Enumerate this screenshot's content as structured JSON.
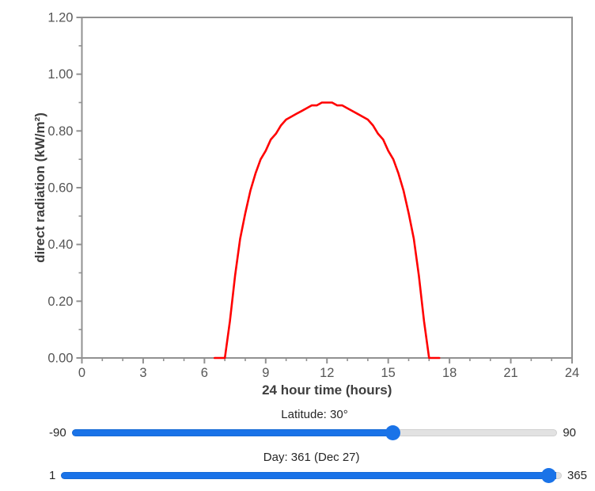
{
  "chart_data": {
    "type": "line",
    "title": "",
    "xlabel": "24 hour time (hours)",
    "ylabel": "direct radiation (kW/m²)",
    "xlim": [
      0,
      24
    ],
    "ylim": [
      0,
      1.2
    ],
    "x_major_ticks": [
      0,
      3,
      6,
      9,
      12,
      15,
      18,
      21,
      24
    ],
    "x_minor_step": 1,
    "y_major_ticks": [
      0,
      0.2,
      0.4,
      0.6,
      0.8,
      1,
      1.2
    ],
    "y_minor_step": 0.1,
    "y_tick_decimals": 2,
    "grid": false,
    "legend": false,
    "axis_color": "#919191",
    "tick_label_color": "#565656",
    "axis_title_color": "#3e3e3e",
    "series": [
      {
        "name": "direct radiation",
        "color": "#ff0000",
        "x": [
          6.5,
          6.75,
          7,
          7.25,
          7.5,
          7.75,
          8,
          8.25,
          8.5,
          8.75,
          9,
          9.25,
          9.5,
          9.75,
          10,
          10.25,
          10.5,
          10.75,
          11,
          11.25,
          11.5,
          11.75,
          12,
          12.25,
          12.5,
          12.75,
          13,
          13.25,
          13.5,
          13.75,
          14,
          14.25,
          14.5,
          14.75,
          15,
          15.25,
          15.5,
          15.75,
          16,
          16.25,
          16.5,
          16.75,
          17,
          17.25,
          17.5
        ],
        "y": [
          0,
          0,
          0,
          0.13,
          0.29,
          0.42,
          0.51,
          0.59,
          0.65,
          0.7,
          0.73,
          0.77,
          0.79,
          0.82,
          0.84,
          0.85,
          0.86,
          0.87,
          0.88,
          0.89,
          0.89,
          0.9,
          0.9,
          0.9,
          0.89,
          0.89,
          0.88,
          0.87,
          0.86,
          0.85,
          0.84,
          0.82,
          0.79,
          0.77,
          0.73,
          0.7,
          0.65,
          0.59,
          0.51,
          0.42,
          0.29,
          0.13,
          0,
          0,
          0
        ]
      }
    ]
  },
  "controls": {
    "accent_color": "#1a73e8",
    "track_color": "#e2e2e2",
    "latitude": {
      "label": "Latitude: 30°",
      "min": -90,
      "max": 90,
      "value": 30,
      "min_label": "-90",
      "max_label": "90"
    },
    "day": {
      "label": "Day: 361 (Dec 27)",
      "min": 1,
      "max": 365,
      "value": 361,
      "min_label": "1",
      "max_label": "365"
    }
  }
}
